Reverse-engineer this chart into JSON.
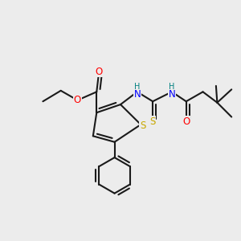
{
  "bg_color": "#ececec",
  "colors": {
    "O": "#ff0000",
    "N": "#0000ff",
    "S_yellow": "#c8a800",
    "H": "#008080",
    "C": "#1a1a1a"
  },
  "bond_lw": 1.5,
  "font_size": 8.5
}
